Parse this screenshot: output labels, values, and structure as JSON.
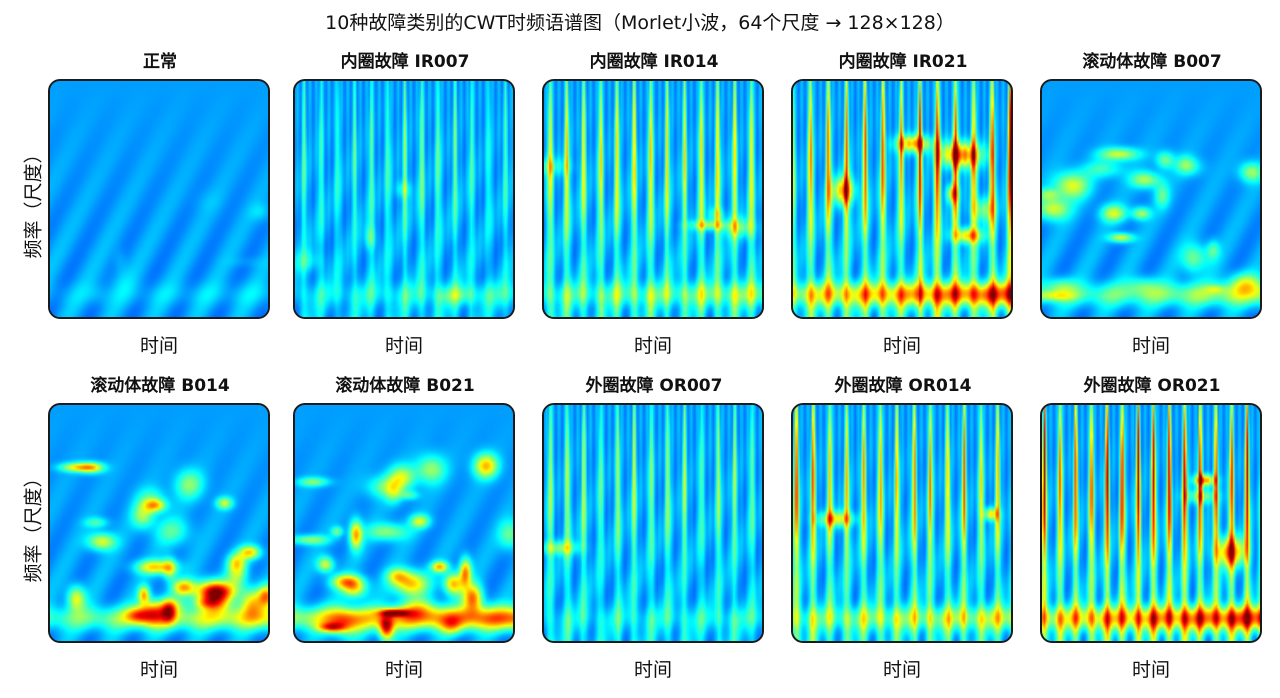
{
  "figure": {
    "suptitle": "10种故障类别的CWT时频语谱图（Morlet小波，64个尺度 → 128×128）",
    "xlabel": "时间",
    "ylabel": "频率（尺度）"
  },
  "chart_data": {
    "type": "heatmap",
    "colormap": "jet",
    "panels": [
      {
        "title": "正常",
        "intensity": 0.12,
        "stripes": 0,
        "chaos": 0.2,
        "bottom_band": 0.1
      },
      {
        "title": "内圈故障 IR007",
        "intensity": 0.35,
        "stripes": 13,
        "chaos": 0.15,
        "bottom_band": 0.2
      },
      {
        "title": "内圈故障 IR014",
        "intensity": 0.6,
        "stripes": 13,
        "chaos": 0.15,
        "bottom_band": 0.35
      },
      {
        "title": "内圈故障 IR021",
        "intensity": 0.95,
        "stripes": 12,
        "chaos": 0.2,
        "bottom_band": 0.9
      },
      {
        "title": "滚动体故障 B007",
        "intensity": 0.6,
        "stripes": 0,
        "chaos": 0.8,
        "bottom_band": 0.5
      },
      {
        "title": "滚动体故障 B014",
        "intensity": 0.75,
        "stripes": 0,
        "chaos": 1.0,
        "bottom_band": 0.6
      },
      {
        "title": "滚动体故障 B021",
        "intensity": 0.95,
        "stripes": 0,
        "chaos": 1.0,
        "bottom_band": 0.95
      },
      {
        "title": "外圈故障 OR007",
        "intensity": 0.5,
        "stripes": 13,
        "chaos": 0.05,
        "bottom_band": 0.15
      },
      {
        "title": "外圈故障 OR014",
        "intensity": 0.8,
        "stripes": 13,
        "chaos": 0.08,
        "bottom_band": 0.45
      },
      {
        "title": "外圈故障 OR021",
        "intensity": 1.0,
        "stripes": 14,
        "chaos": 0.1,
        "bottom_band": 0.95
      }
    ]
  }
}
